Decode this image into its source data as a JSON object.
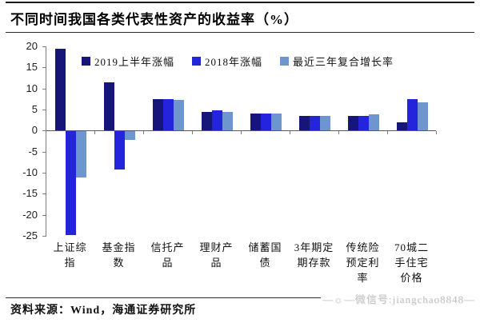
{
  "header": {
    "title": "不同时间我国各类代表性资产的收益率（%）"
  },
  "chart_data": {
    "type": "bar",
    "title": "不同时间我国各类代表性资产的收益率（%）",
    "categories": [
      "上证综指",
      "基金指数",
      "信托产品",
      "理财产品",
      "储蓄国债",
      "3年期定期存款",
      "传统险预定利率",
      "70城二手住宅价格"
    ],
    "series": [
      {
        "name": "2019上半年涨幅",
        "color": "#15157A",
        "values": [
          19.5,
          11.5,
          7.5,
          4.4,
          4.0,
          3.5,
          3.4,
          2.0
        ]
      },
      {
        "name": "2018年涨幅",
        "color": "#2424DC",
        "values": [
          -24.6,
          -9.0,
          7.5,
          4.9,
          4.0,
          3.5,
          3.4,
          7.4
        ]
      },
      {
        "name": "最近三年复合增长率",
        "color": "#6D95CE",
        "values": [
          -11.0,
          -2.0,
          7.2,
          4.5,
          4.0,
          3.5,
          3.8,
          6.8
        ]
      }
    ],
    "ylim": [
      -25,
      20
    ],
    "yticks": [
      20,
      15,
      10,
      5,
      0,
      -5,
      -10,
      -15,
      -20,
      -25
    ],
    "grid": false,
    "legend_position": "top-inside",
    "xlabel": "",
    "ylabel": ""
  },
  "footer": {
    "source": "资料来源：Wind，海通证券研究所"
  },
  "watermark": {
    "prefix": "—☼—",
    "text": "微信号:jiangchao8848",
    "suffix": "—"
  }
}
